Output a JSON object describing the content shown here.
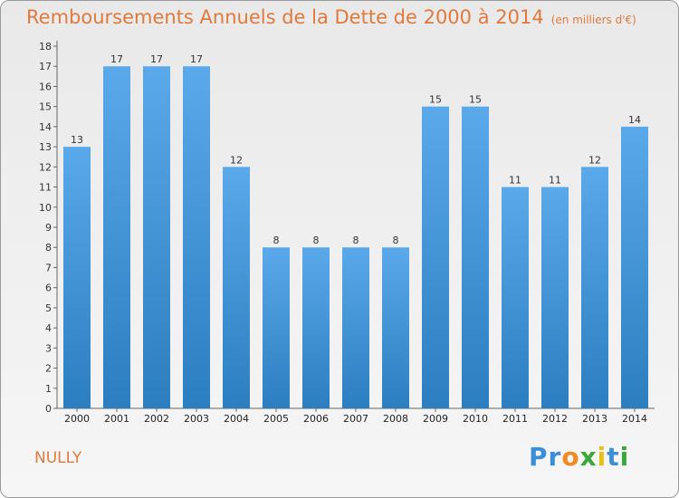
{
  "title": "Remboursements Annuels de la Dette de 2000 à 2014",
  "unit": "(en milliers d'€)",
  "commune": "NULLY",
  "logo": [
    "P",
    "r",
    "o",
    "x",
    "i",
    "t",
    "i"
  ],
  "colors": {
    "bar_top": "#5aa9ea",
    "bar_bottom": "#2b7ec0",
    "title": "#e07a3c",
    "logo": [
      "#3b8fd8",
      "#3b8fd8",
      "#f08a24",
      "#3aa83a",
      "#e8c210",
      "#3b8fd8",
      "#3aa83a"
    ]
  },
  "chart_data": {
    "type": "bar",
    "categories": [
      "2000",
      "2001",
      "2002",
      "2003",
      "2004",
      "2005",
      "2006",
      "2007",
      "2008",
      "2009",
      "2010",
      "2011",
      "2012",
      "2013",
      "2014"
    ],
    "values": [
      13,
      17,
      17,
      17,
      12,
      8,
      8,
      8,
      8,
      15,
      15,
      11,
      11,
      12,
      14
    ],
    "ylim": [
      0,
      18
    ],
    "yticks": [
      0,
      1,
      2,
      3,
      4,
      5,
      6,
      7,
      8,
      9,
      10,
      11,
      12,
      13,
      14,
      15,
      16,
      17,
      18
    ],
    "grid": false,
    "legend": "none"
  }
}
